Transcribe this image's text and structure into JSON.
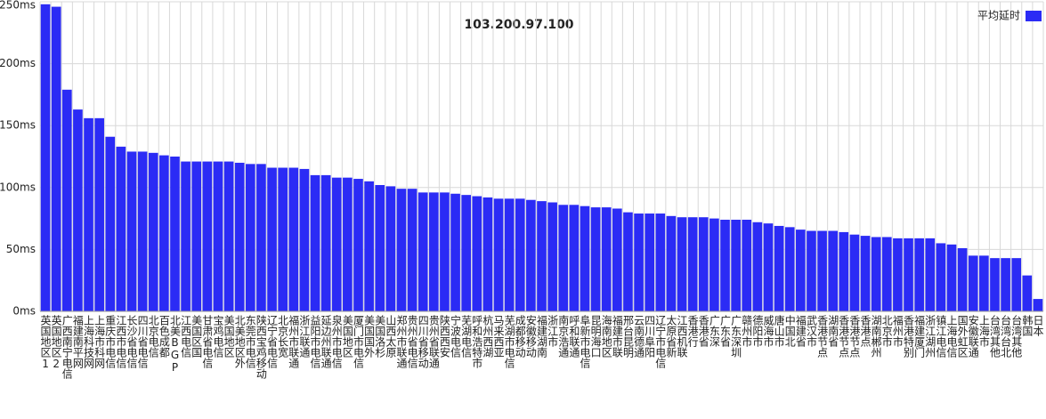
{
  "chart_data": {
    "type": "bar",
    "title": "103.200.97.100",
    "legend_position": "top-right",
    "grid": true,
    "ylim": [
      0,
      250
    ],
    "yticks": [
      {
        "value": 0,
        "label": "0ms"
      },
      {
        "value": 50,
        "label": "50ms"
      },
      {
        "value": 100,
        "label": "100ms"
      },
      {
        "value": 150,
        "label": "150ms"
      },
      {
        "value": 200,
        "label": "200ms"
      },
      {
        "value": 250,
        "label": "250ms"
      }
    ],
    "categories": [
      "英国地区1",
      "英国地区2",
      "广西南宁电信",
      "福建南平网",
      "上海科技网",
      "上海市科网",
      "重庆市电信",
      "江西市电信",
      "长沙省电信",
      "四川省电信",
      "北京电信",
      "百色成都",
      "北美BGP",
      "江西电信",
      "美国区国",
      "甘肃省电信",
      "宝鸡电信",
      "美国地区",
      "北美地区外",
      "东莞市电信",
      "陕西宝鸡移动",
      "辽宁省电信",
      "北京长宽",
      "福州市联通",
      "浙江联通",
      "益阳市电信",
      "延边州联通",
      "泉州市电信",
      "美国地区",
      "厦门市电信",
      "美国国外",
      "美国洛杉",
      "山西太原",
      "郑州市联通",
      "贵州省电信",
      "四川省移动",
      "贵州省联通",
      "陕西西安",
      "宁波电信",
      "芜湖电信",
      "呼和浩特市",
      "杭州西湖",
      "马来西亚",
      "芜湖市电信",
      "成都移动",
      "安徽移动",
      "福建湖南",
      "浙江市",
      "南京浩通",
      "呼和联通",
      "阜新市电信",
      "昆明海口",
      "海南地区",
      "福建市联",
      "邢台昆明",
      "云南德通",
      "四川阜阳",
      "辽宁市电信",
      "太原省新",
      "江西机联",
      "香港行",
      "香港省",
      "广东深",
      "广东省",
      "广东深圳",
      "赣州市",
      "德阳市",
      "威海市",
      "唐山市",
      "中国北",
      "福建省",
      "武汉市",
      "香港节点",
      "湖南省",
      "香港节点",
      "香港节点",
      "香港点",
      "湖南郴州",
      "北京市",
      "福州市",
      "香港特别",
      "福建厦门",
      "浙江湖州",
      "镇江电信",
      "上海电信",
      "国外虹区",
      "安徽联通",
      "上海市",
      "台湾其他",
      "台湾台北",
      "台湾其他",
      "韩国",
      "日本"
    ],
    "series": [
      {
        "name": "平均延时",
        "color": "#2b2bf5",
        "values": [
          248,
          246,
          179,
          163,
          156,
          156,
          141,
          133,
          129,
          129,
          128,
          126,
          125,
          121,
          121,
          121,
          121,
          121,
          120,
          119,
          119,
          116,
          116,
          116,
          115,
          110,
          110,
          108,
          108,
          107,
          105,
          102,
          101,
          99,
          99,
          96,
          96,
          96,
          95,
          94,
          93,
          92,
          91,
          91,
          91,
          90,
          89,
          88,
          86,
          86,
          85,
          84,
          84,
          83,
          80,
          79,
          79,
          79,
          77,
          76,
          76,
          76,
          75,
          74,
          74,
          74,
          72,
          71,
          69,
          68,
          66,
          65,
          65,
          65,
          64,
          62,
          61,
          60,
          60,
          59,
          59,
          59,
          59,
          55,
          54,
          51,
          45,
          45,
          43,
          43,
          43,
          29,
          10
        ]
      }
    ]
  }
}
